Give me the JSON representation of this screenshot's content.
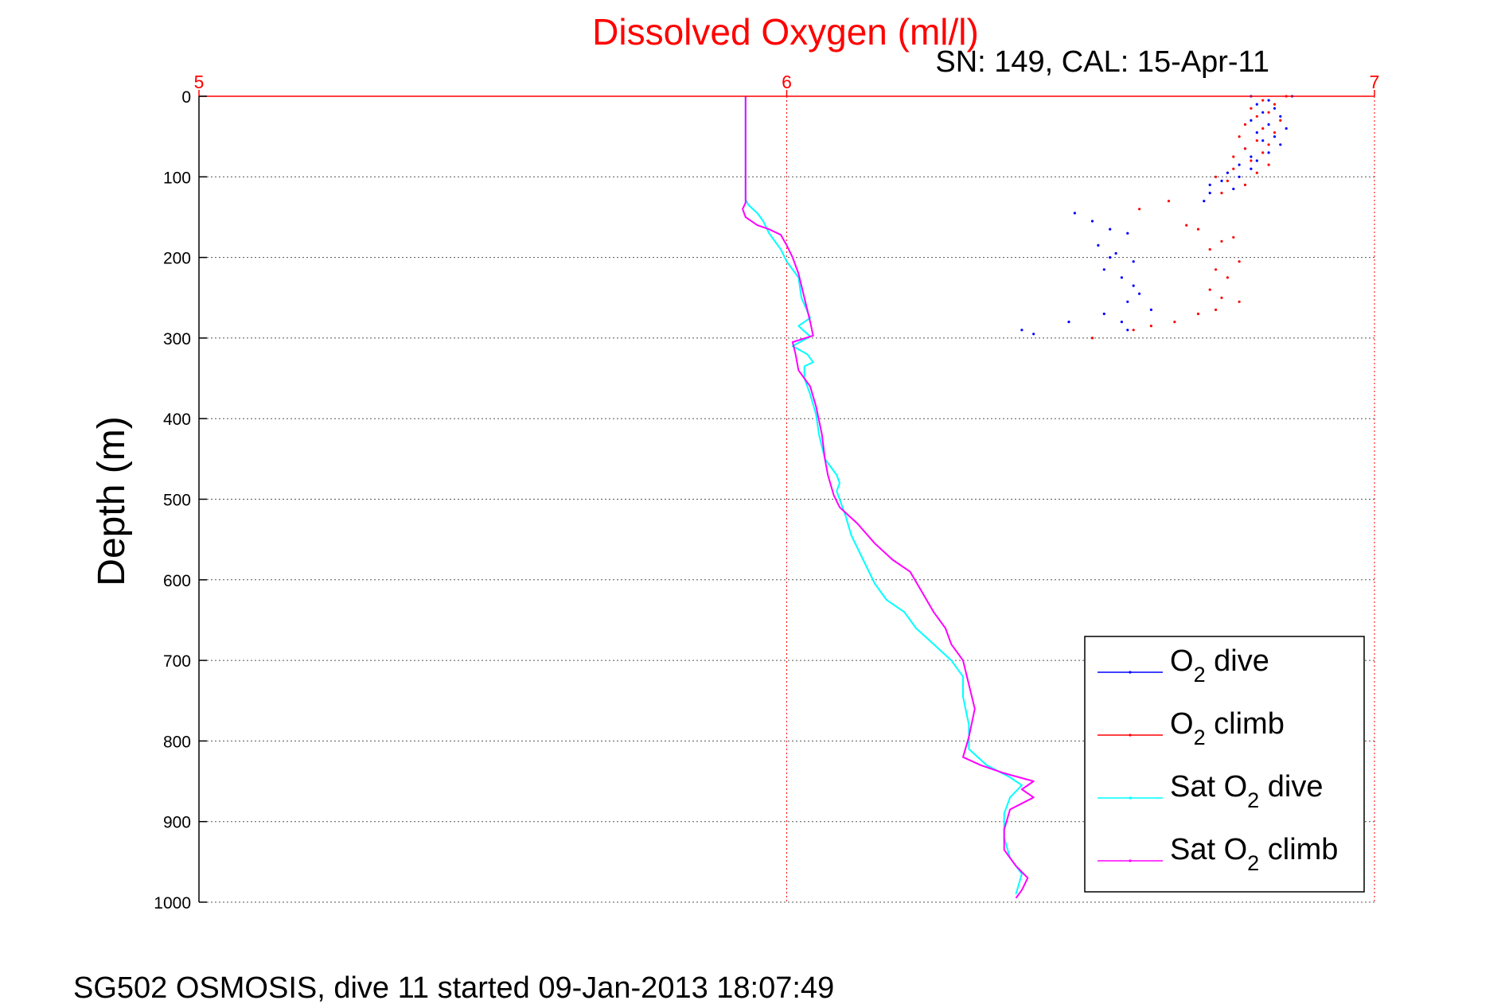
{
  "chart_data": {
    "type": "scatter",
    "title": "Dissolved Oxygen (ml/l)",
    "subtitle": "SN: 149, CAL: 15-Apr-11",
    "footer": "SG502 OSMOSIS, dive 11 started 09-Jan-2013 18:07:49",
    "xlabel": "",
    "ylabel": "Depth (m)",
    "xlim": [
      5,
      7
    ],
    "ylim": [
      0,
      1000
    ],
    "y_reversed": true,
    "x_axis_position": "top",
    "x_ticks": [
      "5",
      "6",
      "7"
    ],
    "y_ticks": [
      "0",
      "100",
      "200",
      "300",
      "400",
      "500",
      "600",
      "700",
      "800",
      "900",
      "1000"
    ],
    "grid": true,
    "legend_position": "bottom-right",
    "colors": {
      "o2_dive": "#0000ff",
      "o2_climb": "#ff0000",
      "sat_o2_dive": "#00ffff",
      "sat_o2_climb": "#ff00ff",
      "title": "#ff0000",
      "x_axis": "#ff0000"
    },
    "series": [
      {
        "name": "O2 dive",
        "legend_main": "O",
        "legend_sub": "2",
        "legend_rest": " dive",
        "style": "dots",
        "color": "#0000ff",
        "points": [
          [
            6.79,
            0
          ],
          [
            6.86,
            0
          ],
          [
            6.82,
            5
          ],
          [
            6.8,
            10
          ],
          [
            6.83,
            15
          ],
          [
            6.81,
            20
          ],
          [
            6.84,
            25
          ],
          [
            6.79,
            30
          ],
          [
            6.82,
            35
          ],
          [
            6.85,
            40
          ],
          [
            6.8,
            45
          ],
          [
            6.83,
            50
          ],
          [
            6.81,
            55
          ],
          [
            6.84,
            60
          ],
          [
            6.78,
            65
          ],
          [
            6.82,
            70
          ],
          [
            6.79,
            75
          ],
          [
            6.8,
            80
          ],
          [
            6.77,
            85
          ],
          [
            6.79,
            90
          ],
          [
            6.75,
            95
          ],
          [
            6.77,
            100
          ],
          [
            6.74,
            105
          ],
          [
            6.72,
            110
          ],
          [
            6.76,
            115
          ],
          [
            6.72,
            120
          ],
          [
            6.71,
            130
          ],
          [
            6.49,
            145
          ],
          [
            6.52,
            155
          ],
          [
            6.55,
            165
          ],
          [
            6.58,
            170
          ],
          [
            6.53,
            185
          ],
          [
            6.56,
            195
          ],
          [
            6.55,
            200
          ],
          [
            6.59,
            205
          ],
          [
            6.54,
            215
          ],
          [
            6.57,
            225
          ],
          [
            6.59,
            235
          ],
          [
            6.6,
            245
          ],
          [
            6.58,
            255
          ],
          [
            6.62,
            265
          ],
          [
            6.54,
            270
          ],
          [
            6.57,
            280
          ],
          [
            6.48,
            280
          ],
          [
            6.58,
            290
          ],
          [
            6.4,
            290
          ],
          [
            6.42,
            295
          ]
        ]
      },
      {
        "name": "O2 climb",
        "legend_main": "O",
        "legend_sub": "2",
        "legend_rest": " climb",
        "style": "dots",
        "color": "#ff0000",
        "points": [
          [
            6.85,
            0
          ],
          [
            6.81,
            5
          ],
          [
            6.83,
            10
          ],
          [
            6.79,
            15
          ],
          [
            6.82,
            20
          ],
          [
            6.8,
            25
          ],
          [
            6.84,
            30
          ],
          [
            6.78,
            35
          ],
          [
            6.81,
            40
          ],
          [
            6.83,
            45
          ],
          [
            6.77,
            50
          ],
          [
            6.8,
            55
          ],
          [
            6.82,
            60
          ],
          [
            6.78,
            65
          ],
          [
            6.81,
            70
          ],
          [
            6.76,
            75
          ],
          [
            6.79,
            80
          ],
          [
            6.82,
            85
          ],
          [
            6.76,
            90
          ],
          [
            6.8,
            95
          ],
          [
            6.73,
            100
          ],
          [
            6.75,
            105
          ],
          [
            6.78,
            110
          ],
          [
            6.74,
            120
          ],
          [
            6.65,
            130
          ],
          [
            6.6,
            140
          ],
          [
            6.68,
            160
          ],
          [
            6.7,
            165
          ],
          [
            6.76,
            175
          ],
          [
            6.74,
            180
          ],
          [
            6.72,
            190
          ],
          [
            6.77,
            205
          ],
          [
            6.73,
            215
          ],
          [
            6.75,
            225
          ],
          [
            6.72,
            240
          ],
          [
            6.74,
            250
          ],
          [
            6.77,
            255
          ],
          [
            6.73,
            265
          ],
          [
            6.7,
            270
          ],
          [
            6.66,
            280
          ],
          [
            6.62,
            285
          ],
          [
            6.59,
            290
          ],
          [
            6.52,
            300
          ]
        ]
      },
      {
        "name": "Sat O2 dive",
        "legend_main": "Sat O",
        "legend_sub": "2",
        "legend_rest": " dive",
        "style": "line",
        "color": "#00ffff",
        "points": [
          [
            5.93,
            0
          ],
          [
            5.93,
            50
          ],
          [
            5.93,
            100
          ],
          [
            5.93,
            128
          ],
          [
            5.935,
            135
          ],
          [
            5.95,
            145
          ],
          [
            5.96,
            155
          ],
          [
            5.97,
            170
          ],
          [
            5.99,
            190
          ],
          [
            6.0,
            205
          ],
          [
            6.02,
            225
          ],
          [
            6.025,
            250
          ],
          [
            6.04,
            275
          ],
          [
            6.02,
            285
          ],
          [
            6.04,
            298
          ],
          [
            6.01,
            310
          ],
          [
            6.035,
            320
          ],
          [
            6.045,
            330
          ],
          [
            6.03,
            335
          ],
          [
            6.03,
            350
          ],
          [
            6.04,
            370
          ],
          [
            6.05,
            395
          ],
          [
            6.055,
            420
          ],
          [
            6.065,
            450
          ],
          [
            6.085,
            470
          ],
          [
            6.09,
            480
          ],
          [
            6.085,
            490
          ],
          [
            6.1,
            520
          ],
          [
            6.11,
            545
          ],
          [
            6.13,
            575
          ],
          [
            6.15,
            605
          ],
          [
            6.17,
            625
          ],
          [
            6.2,
            640
          ],
          [
            6.22,
            660
          ],
          [
            6.25,
            680
          ],
          [
            6.28,
            700
          ],
          [
            6.3,
            720
          ],
          [
            6.3,
            745
          ],
          [
            6.31,
            780
          ],
          [
            6.31,
            810
          ],
          [
            6.34,
            830
          ],
          [
            6.38,
            845
          ],
          [
            6.4,
            855
          ],
          [
            6.38,
            870
          ],
          [
            6.37,
            890
          ],
          [
            6.37,
            920
          ],
          [
            6.38,
            945
          ],
          [
            6.4,
            965
          ],
          [
            6.39,
            990
          ]
        ]
      },
      {
        "name": "Sat O2 climb",
        "legend_main": "Sat O",
        "legend_sub": "2",
        "legend_rest": " climb",
        "style": "line",
        "color": "#ff00ff",
        "points": [
          [
            5.93,
            0
          ],
          [
            5.93,
            50
          ],
          [
            5.93,
            100
          ],
          [
            5.93,
            132
          ],
          [
            5.925,
            140
          ],
          [
            5.93,
            150
          ],
          [
            5.95,
            160
          ],
          [
            5.97,
            165
          ],
          [
            5.99,
            172
          ],
          [
            6.0,
            185
          ],
          [
            6.01,
            200
          ],
          [
            6.02,
            220
          ],
          [
            6.03,
            250
          ],
          [
            6.04,
            280
          ],
          [
            6.045,
            297
          ],
          [
            6.01,
            305
          ],
          [
            6.015,
            320
          ],
          [
            6.02,
            340
          ],
          [
            6.04,
            360
          ],
          [
            6.05,
            385
          ],
          [
            6.06,
            420
          ],
          [
            6.065,
            450
          ],
          [
            6.07,
            470
          ],
          [
            6.08,
            495
          ],
          [
            6.09,
            510
          ],
          [
            6.12,
            530
          ],
          [
            6.15,
            555
          ],
          [
            6.18,
            575
          ],
          [
            6.21,
            590
          ],
          [
            6.23,
            615
          ],
          [
            6.25,
            640
          ],
          [
            6.27,
            660
          ],
          [
            6.28,
            680
          ],
          [
            6.3,
            700
          ],
          [
            6.31,
            730
          ],
          [
            6.32,
            760
          ],
          [
            6.31,
            795
          ],
          [
            6.3,
            820
          ],
          [
            6.33,
            830
          ],
          [
            6.37,
            840
          ],
          [
            6.42,
            850
          ],
          [
            6.4,
            860
          ],
          [
            6.42,
            870
          ],
          [
            6.38,
            885
          ],
          [
            6.37,
            910
          ],
          [
            6.37,
            935
          ],
          [
            6.39,
            955
          ],
          [
            6.41,
            970
          ],
          [
            6.4,
            985
          ],
          [
            6.39,
            995
          ]
        ]
      }
    ]
  }
}
